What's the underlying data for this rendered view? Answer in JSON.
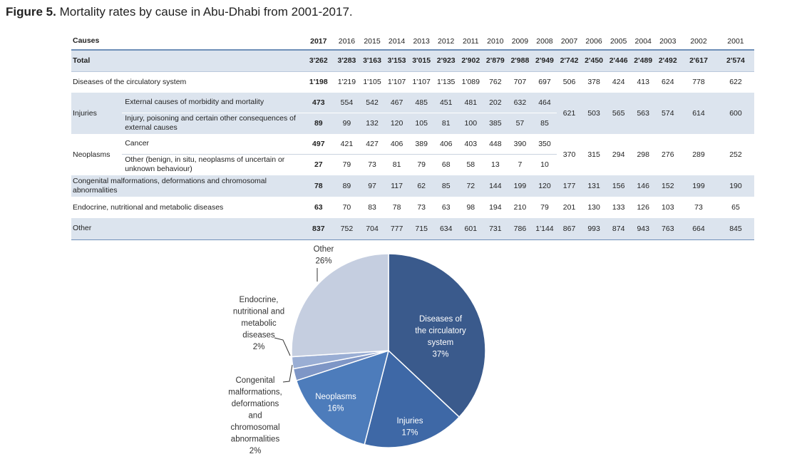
{
  "figure": {
    "label": "Figure 5.",
    "caption": "Mortality rates by cause in Abu-Dhabi from 2001-2017."
  },
  "table": {
    "header": {
      "cause": "Causes",
      "years": [
        "2017",
        "2016",
        "2015",
        "2014",
        "2013",
        "2012",
        "2011",
        "2010",
        "2009",
        "2008",
        "2007",
        "2006",
        "2005",
        "2004",
        "2003",
        "2002",
        "2001"
      ]
    },
    "rows": {
      "total": {
        "label": "Total",
        "values": [
          "3'262",
          "3'283",
          "3'163",
          "3'153",
          "3'015",
          "2'923",
          "2'902",
          "2'879",
          "2'988",
          "2'949",
          "2'742",
          "2'450",
          "2'446",
          "2'489",
          "2'492",
          "2'617",
          "2'574"
        ]
      },
      "circulatory": {
        "label": "Diseases of the circulatory system",
        "values": [
          "1'198",
          "1'219",
          "1'105",
          "1'107",
          "1'107",
          "1'135",
          "1'089",
          "762",
          "707",
          "697",
          "506",
          "378",
          "424",
          "413",
          "624",
          "778",
          "622"
        ]
      },
      "injuries": {
        "label": "Injuries",
        "sub1": {
          "label": "External causes of morbidity and mortality",
          "values": [
            "473",
            "554",
            "542",
            "467",
            "485",
            "451",
            "481",
            "202",
            "632",
            "464"
          ]
        },
        "sub2": {
          "label": "Injury, poisoning and certain other consequences of external causes",
          "values": [
            "89",
            "99",
            "132",
            "120",
            "105",
            "81",
            "100",
            "385",
            "57",
            "85"
          ]
        },
        "combined": [
          "621",
          "503",
          "565",
          "563",
          "574",
          "614",
          "600"
        ]
      },
      "neoplasms": {
        "label": "Neoplasms",
        "sub1": {
          "label": "Cancer",
          "values": [
            "497",
            "421",
            "427",
            "406",
            "389",
            "406",
            "403",
            "448",
            "390",
            "350"
          ]
        },
        "sub2": {
          "label": "Other (benign, in situ, neoplasms of uncertain or unknown behaviour)",
          "values": [
            "27",
            "79",
            "73",
            "81",
            "79",
            "68",
            "58",
            "13",
            "7",
            "10"
          ]
        },
        "combined": [
          "370",
          "315",
          "294",
          "298",
          "276",
          "289",
          "252"
        ]
      },
      "congenital": {
        "label": "Congenital malformations, deformations and chromosomal abnormalities",
        "values": [
          "78",
          "89",
          "97",
          "117",
          "62",
          "85",
          "72",
          "144",
          "199",
          "120",
          "177",
          "131",
          "156",
          "146",
          "152",
          "199",
          "190"
        ]
      },
      "endocrine": {
        "label": "Endocrine, nutritional and metabolic diseases",
        "values": [
          "63",
          "70",
          "83",
          "78",
          "73",
          "63",
          "98",
          "194",
          "210",
          "79",
          "201",
          "130",
          "133",
          "126",
          "103",
          "73",
          "65"
        ]
      },
      "other": {
        "label": "Other",
        "values": [
          "837",
          "752",
          "704",
          "777",
          "715",
          "634",
          "601",
          "731",
          "786",
          "1'144",
          "867",
          "993",
          "874",
          "943",
          "763",
          "664",
          "845"
        ]
      }
    }
  },
  "chart_data": {
    "type": "pie",
    "slices": [
      {
        "lines": [
          "Diseases of",
          "the circulatory",
          "system",
          "37%"
        ],
        "value": 37,
        "color": "#3a5a8c"
      },
      {
        "lines": [
          "Injuries",
          "17%"
        ],
        "value": 17,
        "color": "#3e68a6"
      },
      {
        "lines": [
          "Neoplasms",
          "16%"
        ],
        "value": 16,
        "color": "#4d7cbb"
      },
      {
        "lines": [
          "Congenital",
          "malformations,",
          "deformations",
          "and",
          "chromosomal",
          "abnormalities",
          "2%"
        ],
        "value": 2,
        "color": "#7e96c6"
      },
      {
        "lines": [
          "Endocrine,",
          "nutritional and",
          "metabolic",
          "diseases",
          "2%"
        ],
        "value": 2,
        "color": "#9aaed4"
      },
      {
        "lines": [
          "Other",
          "26%"
        ],
        "value": 26,
        "color": "#c5cee0"
      }
    ]
  }
}
